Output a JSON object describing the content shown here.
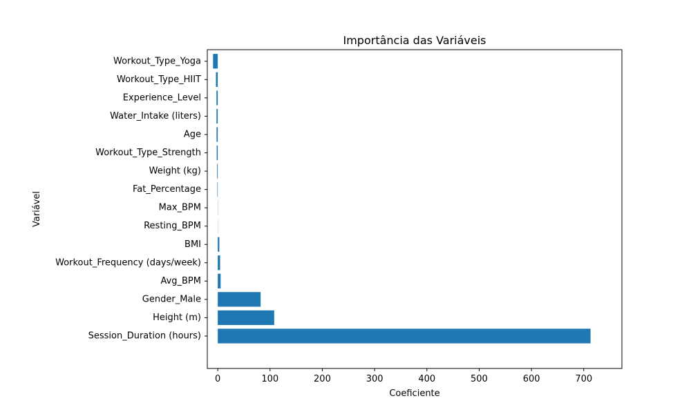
{
  "chart_data": {
    "type": "bar",
    "orientation": "horizontal",
    "title": "Importância das Variáveis",
    "xlabel": "Coeficiente",
    "ylabel": "Variável",
    "categories": [
      "Session_Duration (hours)",
      "Height (m)",
      "Gender_Male",
      "Avg_BPM",
      "Workout_Frequency (days/week)",
      "BMI",
      "Resting_BPM",
      "Max_BPM",
      "Fat_Percentage",
      "Weight (kg)",
      "Workout_Type_Strength",
      "Age",
      "Water_Intake (liters)",
      "Experience_Level",
      "Workout_Type_HIIT",
      "Workout_Type_Yoga"
    ],
    "values": [
      713,
      108,
      82,
      5.5,
      4.5,
      3,
      0.2,
      0.3,
      -0.8,
      -1.2,
      -2,
      -2.3,
      -2.4,
      -2.5,
      -3.5,
      -9
    ],
    "xlim": [
      -20,
      773
    ],
    "xticks": [
      0,
      100,
      200,
      300,
      400,
      500,
      600,
      700
    ],
    "grid": false,
    "legend": "none",
    "bar_color": "#1f77b4"
  }
}
